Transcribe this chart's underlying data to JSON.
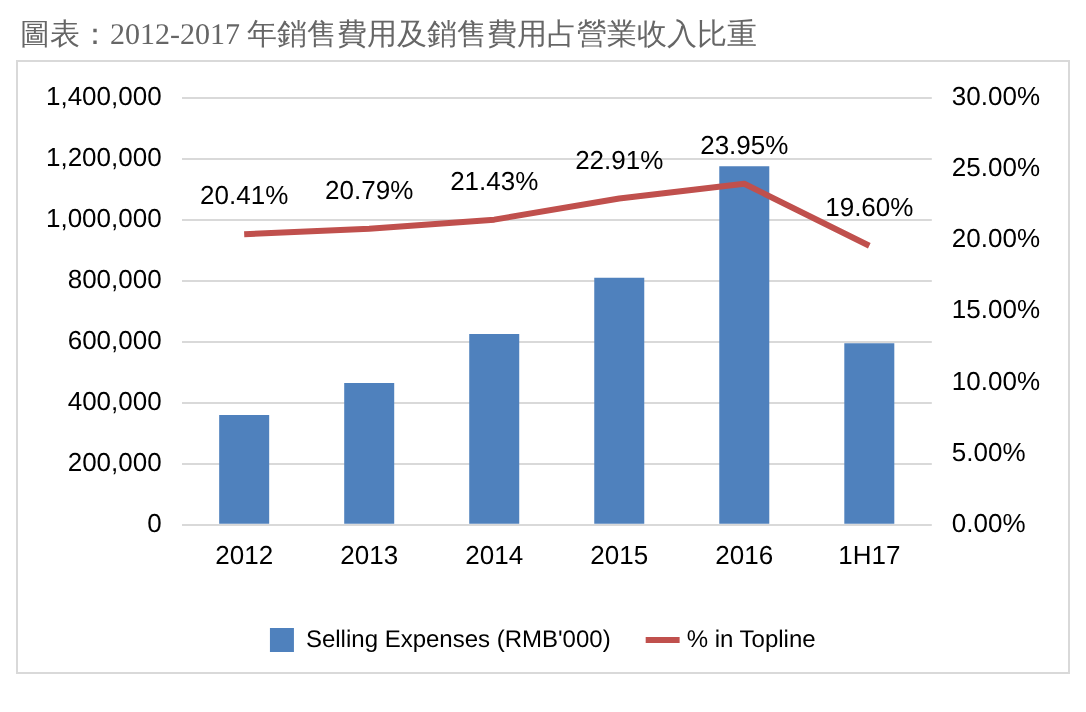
{
  "chart_data": {
    "type": "bar",
    "title": "圖表：2012-2017 年銷售費用及銷售費用占營業收入比重",
    "categories": [
      "2012",
      "2013",
      "2014",
      "2015",
      "2016",
      "1H17"
    ],
    "series": [
      {
        "name": "Selling Expenses (RMB'000)",
        "color": "#4f81bd",
        "values": [
          360000,
          465000,
          625000,
          810000,
          1175000,
          595000
        ]
      },
      {
        "name": "% in Topline",
        "type": "line",
        "axis": "y2",
        "color": "#c0504d",
        "marker": "none",
        "values": [
          20.41,
          20.79,
          21.43,
          22.91,
          23.95,
          19.6
        ],
        "value_labels": [
          "20.41%",
          "20.79%",
          "21.43%",
          "22.91%",
          "23.95%",
          "19.60%"
        ]
      }
    ],
    "ylim": [
      0,
      1400000
    ],
    "yticks": [
      {
        "value": 0,
        "label": "0"
      },
      {
        "value": 200000,
        "label": "200,000"
      },
      {
        "value": 400000,
        "label": "400,000"
      },
      {
        "value": 600000,
        "label": "600,000"
      },
      {
        "value": 800000,
        "label": "800,000"
      },
      {
        "value": 1000000,
        "label": "1,000,000"
      },
      {
        "value": 1200000,
        "label": "1,200,000"
      },
      {
        "value": 1400000,
        "label": "1,400,000"
      }
    ],
    "y2lim": [
      0,
      30
    ],
    "y2ticks": [
      {
        "value": 0,
        "label": "0.00%"
      },
      {
        "value": 5,
        "label": "5.00%"
      },
      {
        "value": 10,
        "label": "10.00%"
      },
      {
        "value": 15,
        "label": "15.00%"
      },
      {
        "value": 20,
        "label": "20.00%"
      },
      {
        "value": 25,
        "label": "25.00%"
      },
      {
        "value": 30,
        "label": "30.00%"
      }
    ],
    "grid": "y",
    "legend": "bottom"
  }
}
